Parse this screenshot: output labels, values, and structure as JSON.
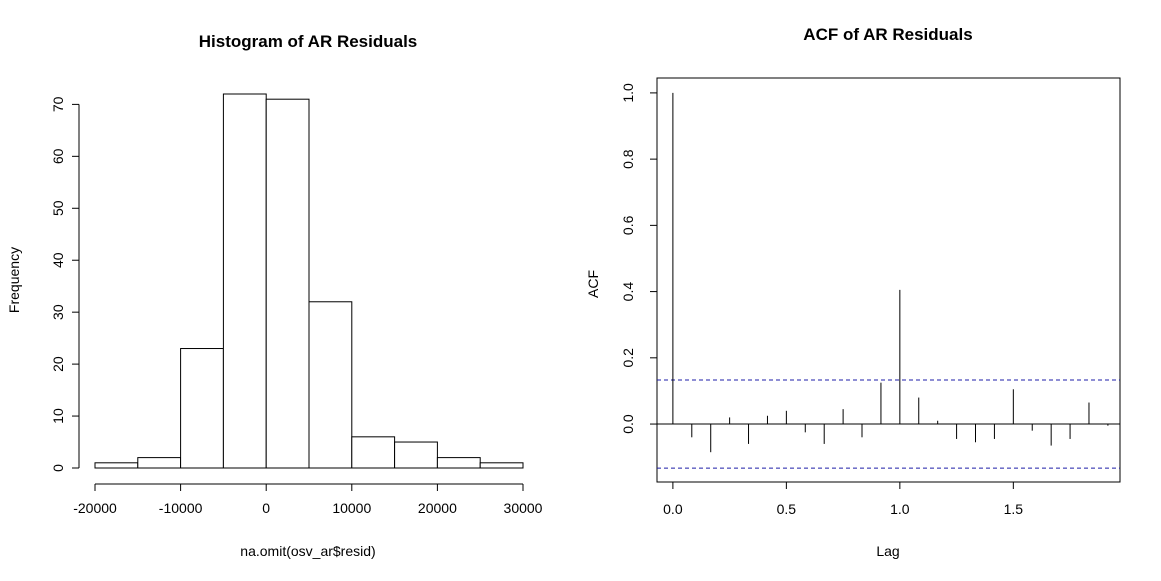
{
  "chart_data": [
    {
      "type": "bar",
      "title": "Histogram of AR Residuals",
      "xlabel": "na.omit(osv_ar$resid)",
      "ylabel": "Frequency",
      "bins": [
        {
          "from": -20000,
          "to": -15000,
          "count": 1
        },
        {
          "from": -15000,
          "to": -10000,
          "count": 2
        },
        {
          "from": -10000,
          "to": -5000,
          "count": 23
        },
        {
          "from": -5000,
          "to": 0,
          "count": 72
        },
        {
          "from": 0,
          "to": 5000,
          "count": 71
        },
        {
          "from": 5000,
          "to": 10000,
          "count": 32
        },
        {
          "from": 10000,
          "to": 15000,
          "count": 6
        },
        {
          "from": 15000,
          "to": 20000,
          "count": 5
        },
        {
          "from": 20000,
          "to": 25000,
          "count": 2
        },
        {
          "from": 25000,
          "to": 30000,
          "count": 1
        }
      ],
      "xticks": [
        -20000,
        -10000,
        0,
        10000,
        20000,
        30000
      ],
      "yticks": [
        0,
        10,
        20,
        30,
        40,
        50,
        60,
        70
      ],
      "xlim": [
        -20000,
        30000
      ],
      "ylim": [
        0,
        72
      ]
    },
    {
      "type": "bar",
      "title": "ACF of AR Residuals",
      "xlabel": "Lag",
      "ylabel": "ACF",
      "lags": [
        0,
        0.0833,
        0.1667,
        0.25,
        0.3333,
        0.4167,
        0.5,
        0.5833,
        0.6667,
        0.75,
        0.8333,
        0.9167,
        1.0,
        1.0833,
        1.1667,
        1.25,
        1.3333,
        1.4167,
        1.5,
        1.5833,
        1.6667,
        1.75,
        1.8333,
        1.9167
      ],
      "acf": [
        1.0,
        -0.04,
        -0.085,
        0.02,
        -0.06,
        0.025,
        0.04,
        -0.025,
        -0.06,
        0.045,
        -0.04,
        0.125,
        0.405,
        0.08,
        0.01,
        -0.045,
        -0.055,
        -0.045,
        0.105,
        -0.02,
        -0.065,
        -0.045,
        0.065,
        -0.005
      ],
      "ci": 0.133,
      "ci_color": "#1c1ca8",
      "xticks": [
        0.0,
        0.5,
        1.0,
        1.5
      ],
      "yticks": [
        0.0,
        0.2,
        0.4,
        0.6,
        0.8,
        1.0
      ],
      "xlim": [
        -0.07,
        1.97
      ],
      "ylim": [
        -0.175,
        1.045
      ]
    }
  ]
}
